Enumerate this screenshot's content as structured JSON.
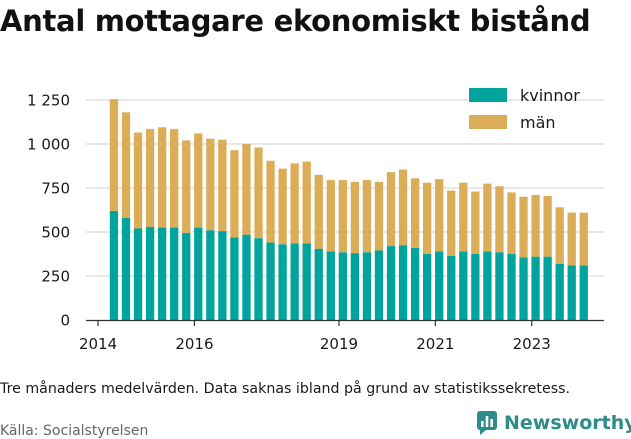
{
  "title": "Antal mottagare ekonomiskt bistånd",
  "footnote": "Tre månaders medelvärden. Data saknas ibland på grund av statistikssekretess.",
  "source": "Källa: Socialstyrelsen",
  "brand": {
    "name": "Newsworthy",
    "icon": "newsworthy-logo-icon",
    "color": "#2f8b88"
  },
  "colors": {
    "kvinnor": "#00a49c",
    "man": "#dbad58",
    "grid": "#d9d9d9",
    "axis": "#333333"
  },
  "chart_data": {
    "type": "bar",
    "stacked": true,
    "legend_position": "top-right",
    "grid": true,
    "ylim": [
      0,
      1250
    ],
    "yticks": [
      0,
      250,
      500,
      750,
      1000,
      1250
    ],
    "ytick_labels": [
      "0",
      "250",
      "500",
      "750",
      "1 000",
      "1 250"
    ],
    "xlim": [
      2013.75,
      2024.5
    ],
    "xticks": [
      2014,
      2016,
      2019,
      2021,
      2023
    ],
    "xtick_labels": [
      "2014",
      "2016",
      "2019",
      "2021",
      "2023"
    ],
    "x": [
      2014.33,
      2014.58,
      2014.83,
      2015.08,
      2015.33,
      2015.58,
      2015.83,
      2016.08,
      2016.33,
      2016.58,
      2016.83,
      2017.08,
      2017.33,
      2017.58,
      2017.83,
      2018.08,
      2018.33,
      2018.58,
      2018.83,
      2019.08,
      2019.33,
      2019.58,
      2019.83,
      2020.08,
      2020.33,
      2020.58,
      2020.83,
      2021.08,
      2021.33,
      2021.58,
      2021.83,
      2022.08,
      2022.33,
      2022.58,
      2022.83,
      2023.08,
      2023.33,
      2023.58,
      2023.83,
      2024.08
    ],
    "series": [
      {
        "name": "kvinnor",
        "values": [
          620,
          580,
          520,
          530,
          525,
          525,
          495,
          525,
          510,
          505,
          470,
          485,
          465,
          440,
          430,
          435,
          435,
          405,
          390,
          385,
          380,
          385,
          395,
          420,
          425,
          410,
          375,
          390,
          365,
          390,
          375,
          390,
          385,
          375,
          355,
          360,
          360,
          320,
          310,
          310
        ]
      },
      {
        "name": "män",
        "values": [
          635,
          600,
          545,
          555,
          570,
          560,
          525,
          535,
          520,
          520,
          495,
          515,
          515,
          465,
          430,
          455,
          465,
          420,
          405,
          410,
          405,
          410,
          390,
          420,
          430,
          395,
          405,
          410,
          370,
          390,
          355,
          385,
          375,
          350,
          345,
          350,
          345,
          320,
          300,
          300
        ]
      }
    ]
  }
}
